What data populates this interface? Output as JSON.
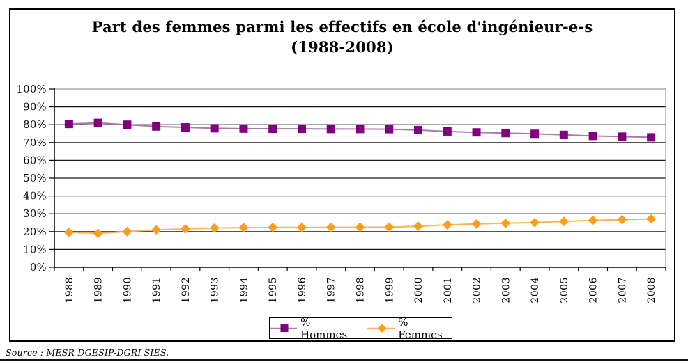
{
  "title": {
    "line1": "Part des femmes parmi les effectifs en école d'ingénieur-e-s",
    "line2": "(1988-2008)"
  },
  "source": "Source : MESR DGESIP-DGRI SIES.",
  "legend": {
    "items": [
      {
        "label": "% Hommes"
      },
      {
        "label": "% Femmes"
      }
    ]
  },
  "colors": {
    "hommes_marker": "#800080",
    "hommes_line": "#a87ca8",
    "femmes_marker": "#ff9e1b",
    "femmes_line": "#ffb25b",
    "grid": "#1a1a1a",
    "grid_top": "#999999",
    "plot_right_border": "#999999",
    "axis": "#000000"
  },
  "chart_data": {
    "type": "line",
    "title": "Part des femmes parmi les effectifs en école d'ingénieur-e-s (1988-2008)",
    "categories": [
      "1988",
      "1989",
      "1990",
      "1991",
      "1992",
      "1993",
      "1994",
      "1995",
      "1996",
      "1997",
      "1998",
      "1999",
      "2000",
      "2001",
      "2002",
      "2003",
      "2004",
      "2005",
      "2006",
      "2007",
      "2008"
    ],
    "series": [
      {
        "name": "% Hommes",
        "marker": "square",
        "marker_color": "#800080",
        "line_color": "#a87ca8",
        "values": [
          80.4,
          81.0,
          80.0,
          79.0,
          78.5,
          78.0,
          77.8,
          77.7,
          77.7,
          77.6,
          77.6,
          77.5,
          77.0,
          76.2,
          75.7,
          75.3,
          74.9,
          74.3,
          73.7,
          73.3,
          72.9
        ]
      },
      {
        "name": "% Femmes",
        "marker": "diamond",
        "marker_color": "#ff9e1b",
        "line_color": "#ffb25b",
        "values": [
          19.6,
          19.0,
          20.0,
          21.0,
          21.5,
          22.0,
          22.2,
          22.3,
          22.3,
          22.4,
          22.4,
          22.5,
          23.0,
          23.8,
          24.3,
          24.7,
          25.1,
          25.7,
          26.3,
          26.7,
          27.1
        ]
      }
    ],
    "xlabel": "",
    "ylabel": "",
    "ylim": [
      0,
      100
    ],
    "ytick_step": 10,
    "ytick_labels": [
      "0%",
      "10%",
      "20%",
      "30%",
      "40%",
      "50%",
      "60%",
      "70%",
      "80%",
      "90%",
      "100%"
    ],
    "grid": "horizontal-on",
    "legend_position": "bottom-center"
  }
}
